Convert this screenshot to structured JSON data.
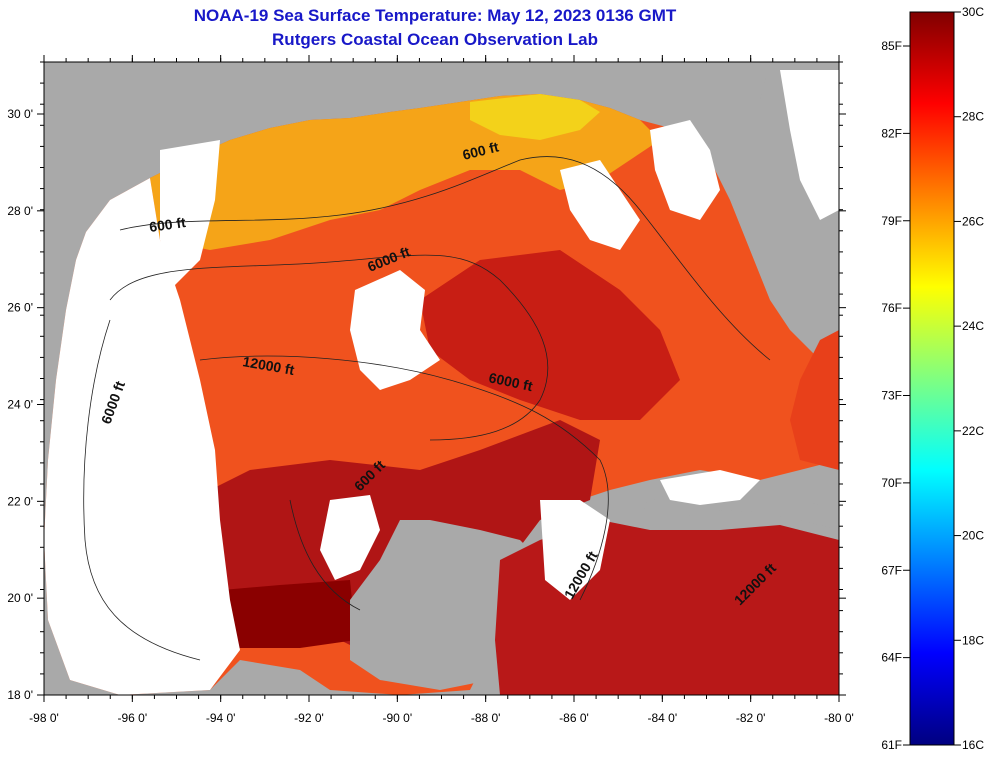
{
  "title": {
    "line1": "NOAA-19 Sea Surface Temperature:  May 12, 2023 0136 GMT",
    "line2": "Rutgers Coastal Ocean Observation Lab"
  },
  "axes": {
    "x_ticks": [
      "-98 0'",
      "-96 0'",
      "-94 0'",
      "-92 0'",
      "-90 0'",
      "-88 0'",
      "-86 0'",
      "-84 0'",
      "-82 0'",
      "-80 0'"
    ],
    "y_ticks": [
      "30 0'",
      "28 0'",
      "26 0'",
      "24 0'",
      "22 0'",
      "20 0'",
      "18 0'"
    ]
  },
  "contours": {
    "labels": [
      "600 ft",
      "600 ft",
      "600 ft",
      "6000 ft",
      "6000 ft",
      "6000 ft",
      "12000 ft",
      "12000 ft",
      "12000 ft"
    ]
  },
  "colorbar": {
    "f_labels": [
      "85F",
      "82F",
      "79F",
      "76F",
      "73F",
      "70F",
      "67F",
      "64F",
      "61F"
    ],
    "c_labels": [
      "30C",
      "28C",
      "26C",
      "24C",
      "22C",
      "20C",
      "18C",
      "16C"
    ],
    "colors": [
      "#000080",
      "#0000ff",
      "#0080ff",
      "#00ffff",
      "#80ff80",
      "#ffff00",
      "#ff8000",
      "#ff0000",
      "#800000"
    ]
  },
  "colors": {
    "land": "#a9a9a9",
    "cloud": "#ffffff",
    "title": "#1818c8"
  }
}
